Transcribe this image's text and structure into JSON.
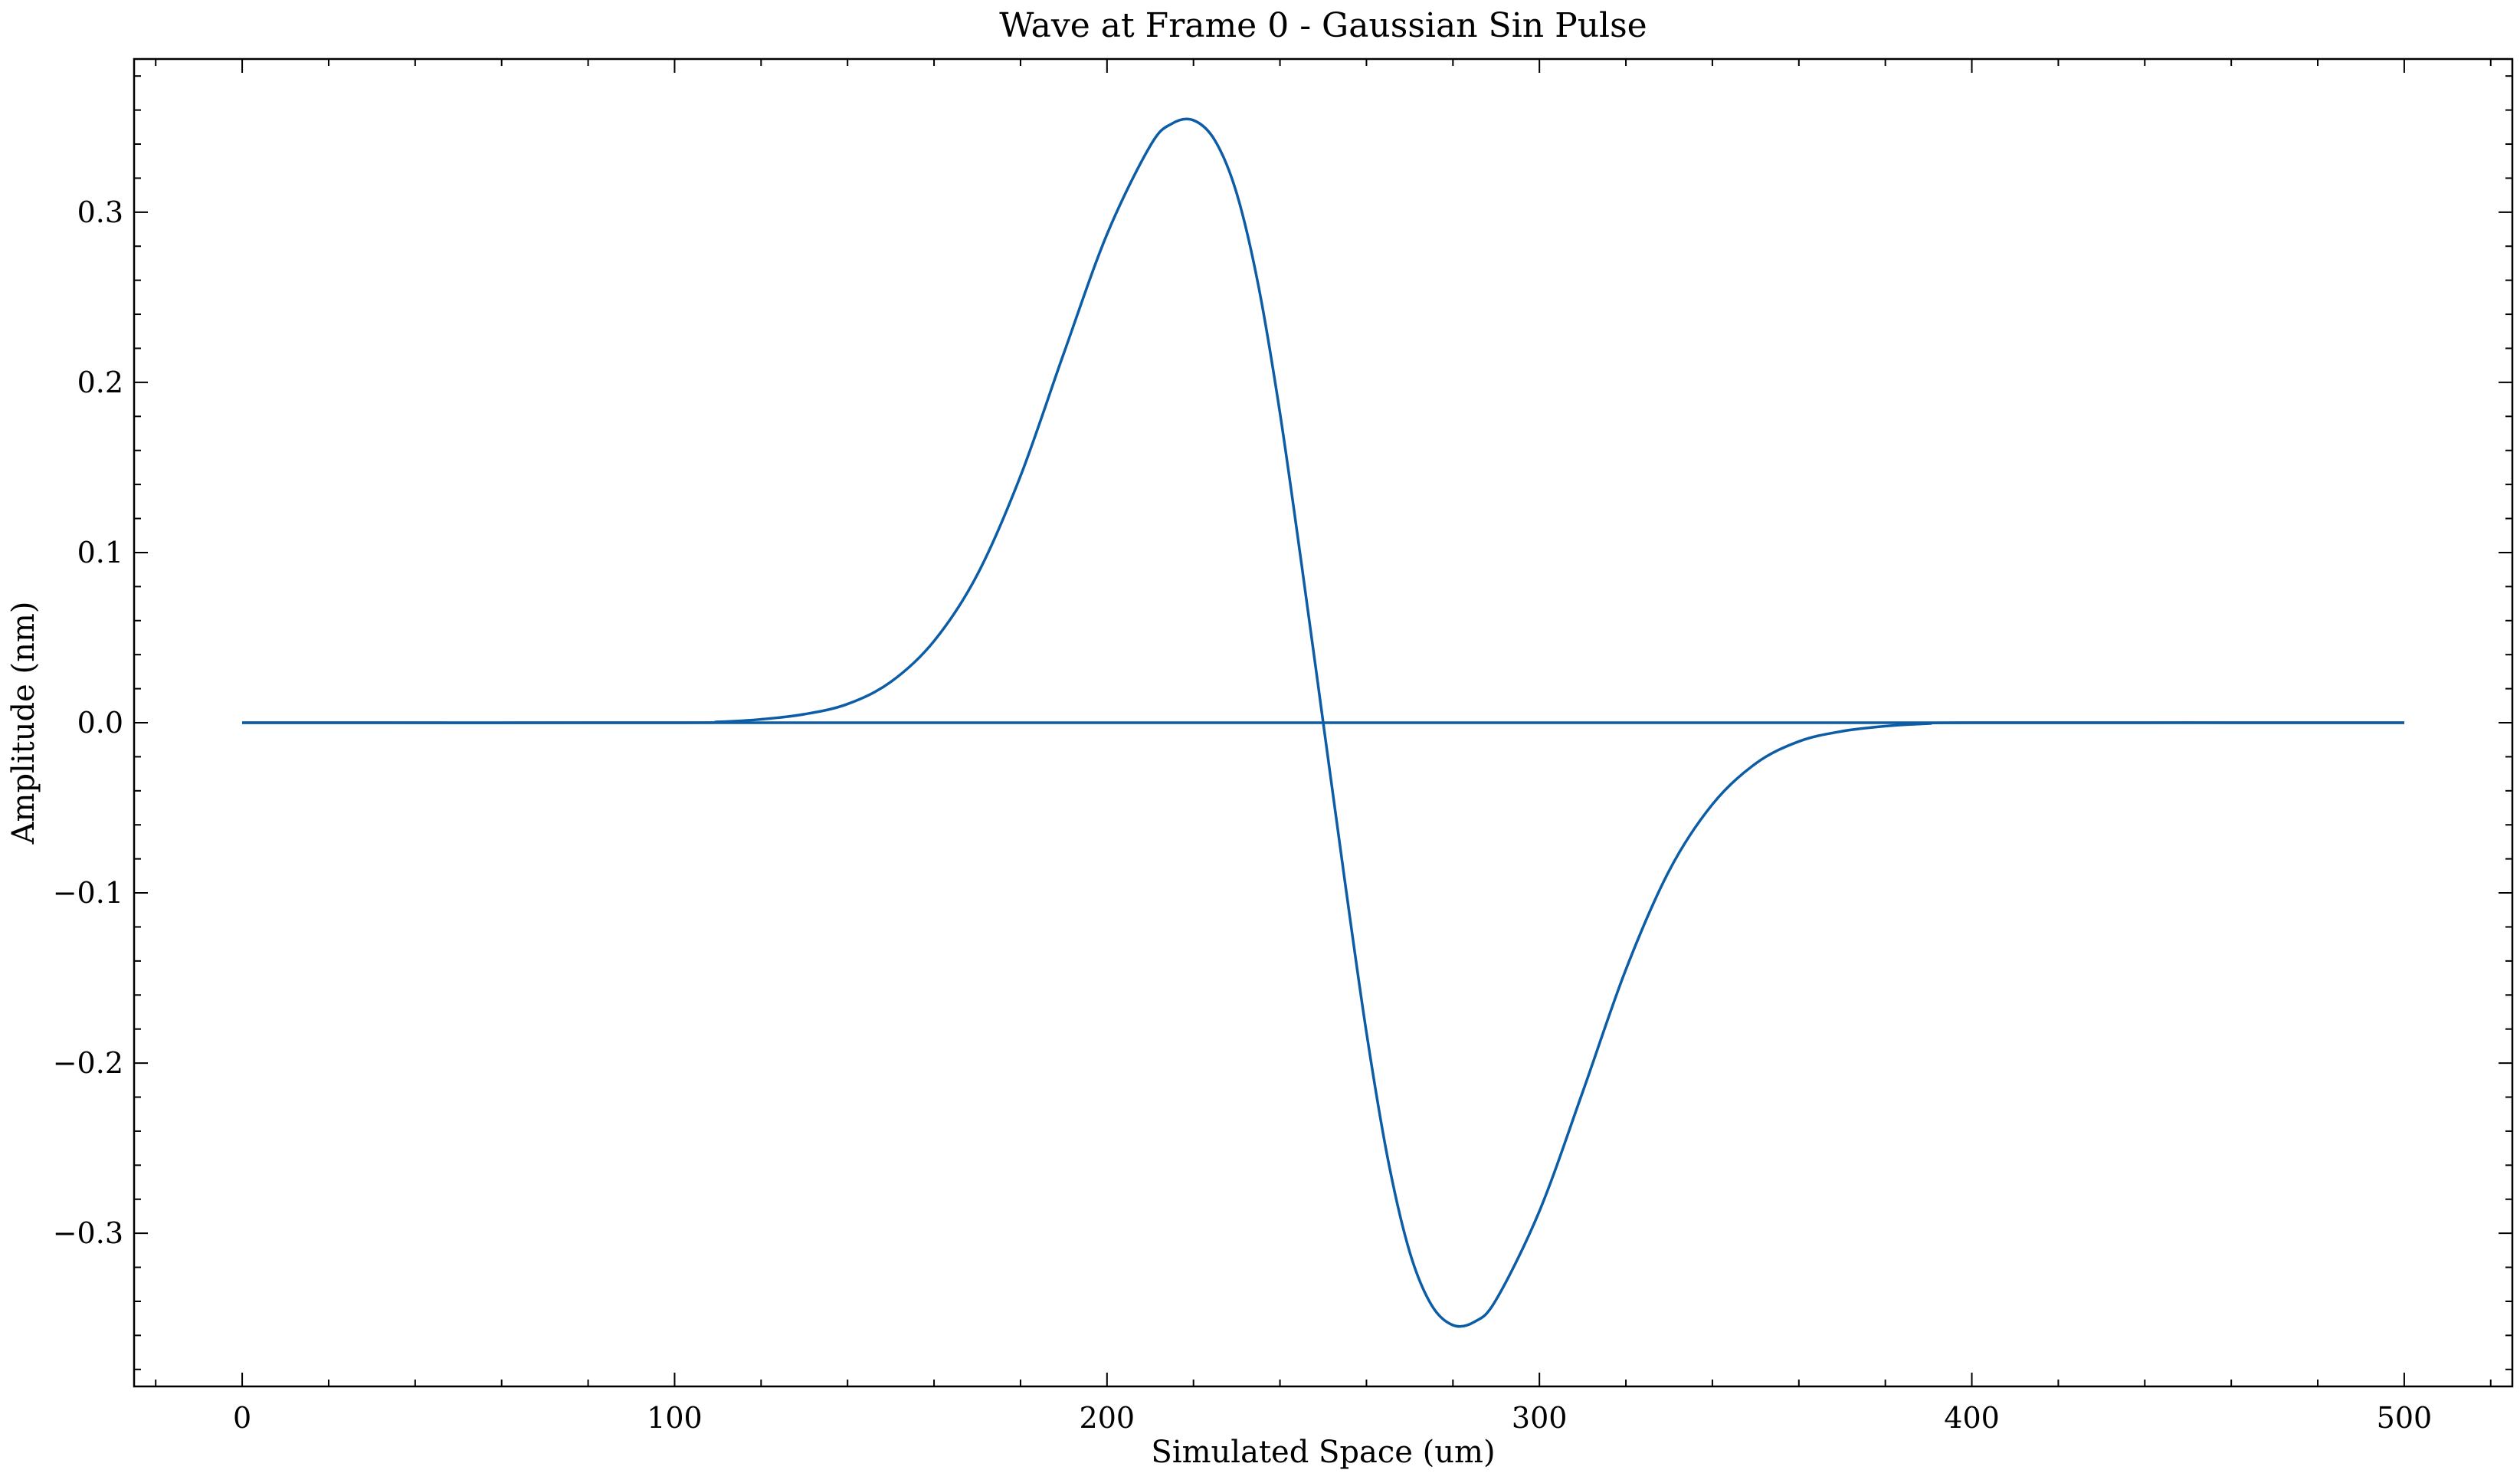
{
  "chart_data": {
    "type": "line",
    "title": "Wave at Frame 0 - Gaussian Sin Pulse",
    "xlabel": "Simulated Space (um)",
    "ylabel": "Amplitude (nm)",
    "xlim": [
      -25,
      525
    ],
    "ylim": [
      -0.39,
      0.39
    ],
    "x_ticks": [
      0,
      100,
      200,
      300,
      400,
      500
    ],
    "x_tick_labels": [
      "0",
      "100",
      "200",
      "300",
      "400",
      "500"
    ],
    "y_ticks": [
      -0.3,
      -0.2,
      -0.1,
      0.0,
      0.1,
      0.2,
      0.3
    ],
    "y_tick_labels": [
      "−0.3",
      "−0.2",
      "−0.1",
      "0.0",
      "0.1",
      "0.2",
      "0.3"
    ],
    "grid": false,
    "legend": "none",
    "color": "#0C5DA5",
    "series": [
      {
        "x": [
          0,
          100,
          110,
          120,
          130,
          140,
          150,
          160,
          170,
          180,
          190,
          200,
          210,
          215,
          220,
          225,
          230,
          235,
          240,
          245,
          250,
          255,
          260,
          265,
          270,
          275,
          280,
          285,
          290,
          300,
          310,
          320,
          330,
          340,
          350,
          360,
          370,
          380,
          390,
          400,
          500
        ],
        "y": [
          0.0,
          0.0,
          0.0005,
          0.002,
          0.005,
          0.011,
          0.024,
          0.048,
          0.087,
          0.145,
          0.217,
          0.287,
          0.339,
          0.352,
          0.354,
          0.342,
          0.311,
          0.257,
          0.182,
          0.093,
          0.0,
          -0.093,
          -0.182,
          -0.257,
          -0.311,
          -0.342,
          -0.354,
          -0.352,
          -0.339,
          -0.287,
          -0.217,
          -0.145,
          -0.087,
          -0.048,
          -0.024,
          -0.011,
          -0.005,
          -0.002,
          -0.0005,
          0.0,
          0.0
        ]
      }
    ]
  }
}
